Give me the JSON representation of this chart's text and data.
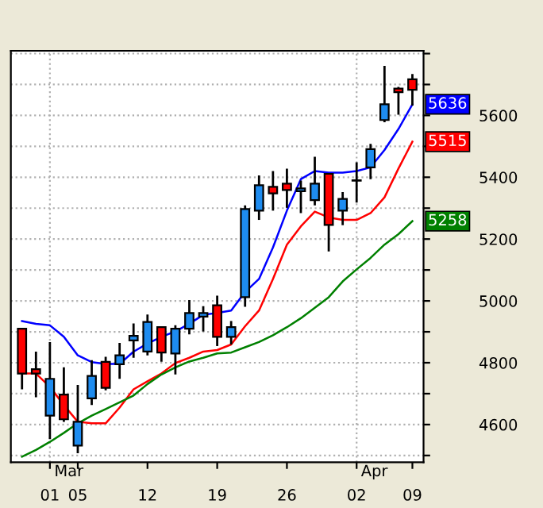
{
  "chart_data": {
    "type": "candlestick",
    "categories": [
      null,
      null,
      "01",
      null,
      "05",
      null,
      null,
      null,
      null,
      "12",
      null,
      null,
      null,
      null,
      "19",
      null,
      null,
      null,
      null,
      "26",
      null,
      null,
      null,
      null,
      "02",
      null,
      null,
      null,
      "09"
    ],
    "ohlc": [
      [
        4910,
        4910,
        4714,
        4765
      ],
      [
        4779,
        4836,
        4688,
        4765
      ],
      [
        4629,
        4867,
        4553,
        4748
      ],
      [
        4697,
        4785,
        4609,
        4617
      ],
      [
        4532,
        4728,
        4507,
        4609
      ],
      [
        4685,
        4808,
        4663,
        4757
      ],
      [
        4803,
        4819,
        4711,
        4719
      ],
      [
        4795,
        4864,
        4748,
        4824
      ],
      [
        4872,
        4927,
        4816,
        4887
      ],
      [
        4836,
        4956,
        4824,
        4932
      ],
      [
        4915,
        4915,
        4803,
        4833
      ],
      [
        4830,
        4921,
        4762,
        4910
      ],
      [
        4910,
        5003,
        4892,
        4961
      ],
      [
        4949,
        4983,
        4901,
        4961
      ],
      [
        4986,
        5017,
        4854,
        4884
      ],
      [
        4884,
        4935,
        4859,
        4915
      ],
      [
        5012,
        5309,
        4981,
        5297
      ],
      [
        5292,
        5406,
        5262,
        5374
      ],
      [
        5369,
        5420,
        5292,
        5348
      ],
      [
        5379,
        5428,
        5301,
        5359
      ],
      [
        5355,
        5389,
        5284,
        5364
      ],
      [
        5326,
        5466,
        5309,
        5379
      ],
      [
        5411,
        5411,
        5160,
        5246
      ],
      [
        5292,
        5352,
        5245,
        5330
      ],
      [
        5389,
        5448,
        5318,
        5389
      ],
      [
        5432,
        5508,
        5394,
        5491
      ],
      [
        5585,
        5760,
        5578,
        5636
      ],
      [
        5687,
        5692,
        5602,
        5675
      ],
      [
        5717,
        5734,
        5632,
        5683
      ]
    ],
    "colors": [
      "#ff0000",
      "#ff0000",
      "#1e8cf0",
      "#ff0000",
      "#1e8cf0",
      "#1e8cf0",
      "#ff0000",
      "#1e8cf0",
      "#1e8cf0",
      "#1e8cf0",
      "#ff0000",
      "#1e8cf0",
      "#1e8cf0",
      "#1e8cf0",
      "#ff0000",
      "#1e8cf0",
      "#1e8cf0",
      "#1e8cf0",
      "#ff0000",
      "#ff0000",
      "#1e8cf0",
      "#1e8cf0",
      "#ff0000",
      "#1e8cf0",
      "#1e8cf0",
      "#1e8cf0",
      "#1e8cf0",
      "#ff0000",
      "#ff0000"
    ],
    "series": [
      {
        "type": "line",
        "color": "#0000ff",
        "values": [
          4935,
          4926,
          4921,
          4884,
          4824,
          4802,
          4796,
          4796,
          4836,
          4862,
          4884,
          4901,
          4926,
          4955,
          4961,
          4969,
          5029,
          5071,
          5173,
          5292,
          5394,
          5420,
          5415,
          5415,
          5420,
          5432,
          5488,
          5556,
          5636
        ],
        "value_labels": [
          null,
          null,
          null,
          null,
          null,
          null,
          null,
          null,
          null,
          null,
          null,
          null,
          null,
          null,
          null,
          null,
          null,
          null,
          null,
          null,
          null,
          null,
          null,
          null,
          null,
          null,
          null,
          null,
          "5636"
        ]
      },
      {
        "type": "line",
        "color": "#ff0000",
        "values": [
          4765,
          4765,
          4722,
          4663,
          4609,
          4604,
          4604,
          4655,
          4714,
          4740,
          4765,
          4799,
          4816,
          4836,
          4841,
          4859,
          4918,
          4969,
          5071,
          5182,
          5241,
          5289,
          5270,
          5262,
          5262,
          5284,
          5335,
          5428,
          5515
        ],
        "value_labels": [
          null,
          null,
          null,
          null,
          null,
          null,
          null,
          null,
          null,
          null,
          null,
          null,
          null,
          null,
          null,
          null,
          null,
          null,
          null,
          null,
          null,
          null,
          null,
          null,
          null,
          null,
          null,
          null,
          "5515"
        ]
      },
      {
        "type": "line",
        "color": "#008000",
        "values": [
          4496,
          4518,
          4544,
          4573,
          4604,
          4629,
          4650,
          4672,
          4694,
          4731,
          4762,
          4785,
          4804,
          4816,
          4830,
          4833,
          4850,
          4867,
          4889,
          4915,
          4944,
          4978,
          5012,
          5063,
          5102,
          5139,
          5182,
          5216,
          5258
        ],
        "value_labels": [
          null,
          null,
          null,
          null,
          null,
          null,
          null,
          null,
          null,
          null,
          null,
          null,
          null,
          null,
          null,
          null,
          null,
          null,
          null,
          null,
          null,
          null,
          null,
          null,
          null,
          null,
          null,
          null,
          "5258"
        ]
      }
    ],
    "ylim": [
      4478,
      5809
    ],
    "yticks": [
      {
        "value": 4500,
        "label": null
      },
      4600,
      {
        "value": 4700,
        "label": null
      },
      4800,
      {
        "value": 4900,
        "label": null
      },
      5000,
      {
        "value": 5100,
        "label": null
      },
      5200,
      {
        "value": 5300,
        "label": null
      },
      5400,
      {
        "value": 5500,
        "label": null
      },
      5600,
      {
        "value": 5700,
        "label": null
      },
      {
        "value": 5800,
        "label": null
      }
    ],
    "grid": "y",
    "ref_lines": [
      {
        "axis": "x",
        "value": "01",
        "color": "#b0b0b0",
        "line_style": "dotted"
      },
      {
        "axis": "x",
        "value": "02",
        "color": "#b0b0b0",
        "line_style": "dotted"
      }
    ],
    "annotations": [
      "Mar",
      "Apr"
    ]
  }
}
